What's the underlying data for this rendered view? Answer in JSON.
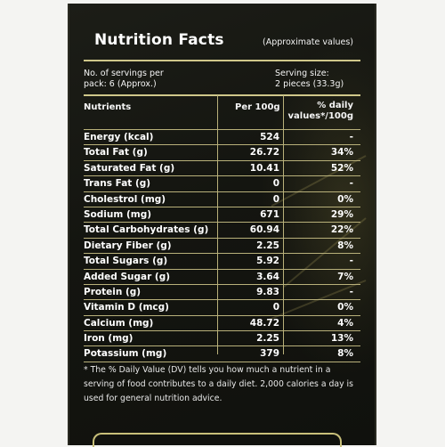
{
  "header": {
    "title": "Nutrition Facts",
    "note": "(Approximate values)"
  },
  "servings": {
    "per_pack_line1": "No. of servings per",
    "per_pack_line2": "pack: 6 (Approx.)",
    "size_line1": "Serving size:",
    "size_line2": "2 pieces (33.3g)"
  },
  "table": {
    "col_nutrients": "Nutrients",
    "col_per100": "Per 100g",
    "col_dv_line1": "% daily",
    "col_dv_line2": "values*/100g",
    "rows": [
      {
        "name": "Energy (kcal)",
        "per100": "524",
        "dv": "-"
      },
      {
        "name": "Total Fat (g)",
        "per100": "26.72",
        "dv": "34%"
      },
      {
        "name": "Saturated Fat (g)",
        "per100": "10.41",
        "dv": "52%"
      },
      {
        "name": "Trans Fat (g)",
        "per100": "0",
        "dv": "-"
      },
      {
        "name": "Cholestrol (mg)",
        "per100": "0",
        "dv": "0%"
      },
      {
        "name": "Sodium (mg)",
        "per100": "671",
        "dv": "29%"
      },
      {
        "name": "Total Carbohydrates (g)",
        "per100": "60.94",
        "dv": "22%"
      },
      {
        "name": "Dietary Fiber (g)",
        "per100": "2.25",
        "dv": "8%"
      },
      {
        "name": "Total Sugars (g)",
        "per100": "5.92",
        "dv": "-"
      },
      {
        "name": "Added Sugar (g)",
        "per100": "3.64",
        "dv": "7%"
      },
      {
        "name": "Protein (g)",
        "per100": "9.83",
        "dv": "-"
      },
      {
        "name": "Vitamin D (mcg)",
        "per100": "0",
        "dv": "0%"
      },
      {
        "name": "Calcium (mg)",
        "per100": "48.72",
        "dv": "4%"
      },
      {
        "name": "Iron (mg)",
        "per100": "2.25",
        "dv": "13%"
      },
      {
        "name": "Potassium (mg)",
        "per100": "379",
        "dv": "8%"
      }
    ]
  },
  "footnote": "* The % Daily Value (DV) tells you how much a nutrient in a serving of food contributes to a daily diet. 2,000 calories a day is used for general nutrition advice.",
  "colors": {
    "panel_bg": "#141510",
    "rule": "#b8b07a",
    "text": "#ffffff"
  }
}
